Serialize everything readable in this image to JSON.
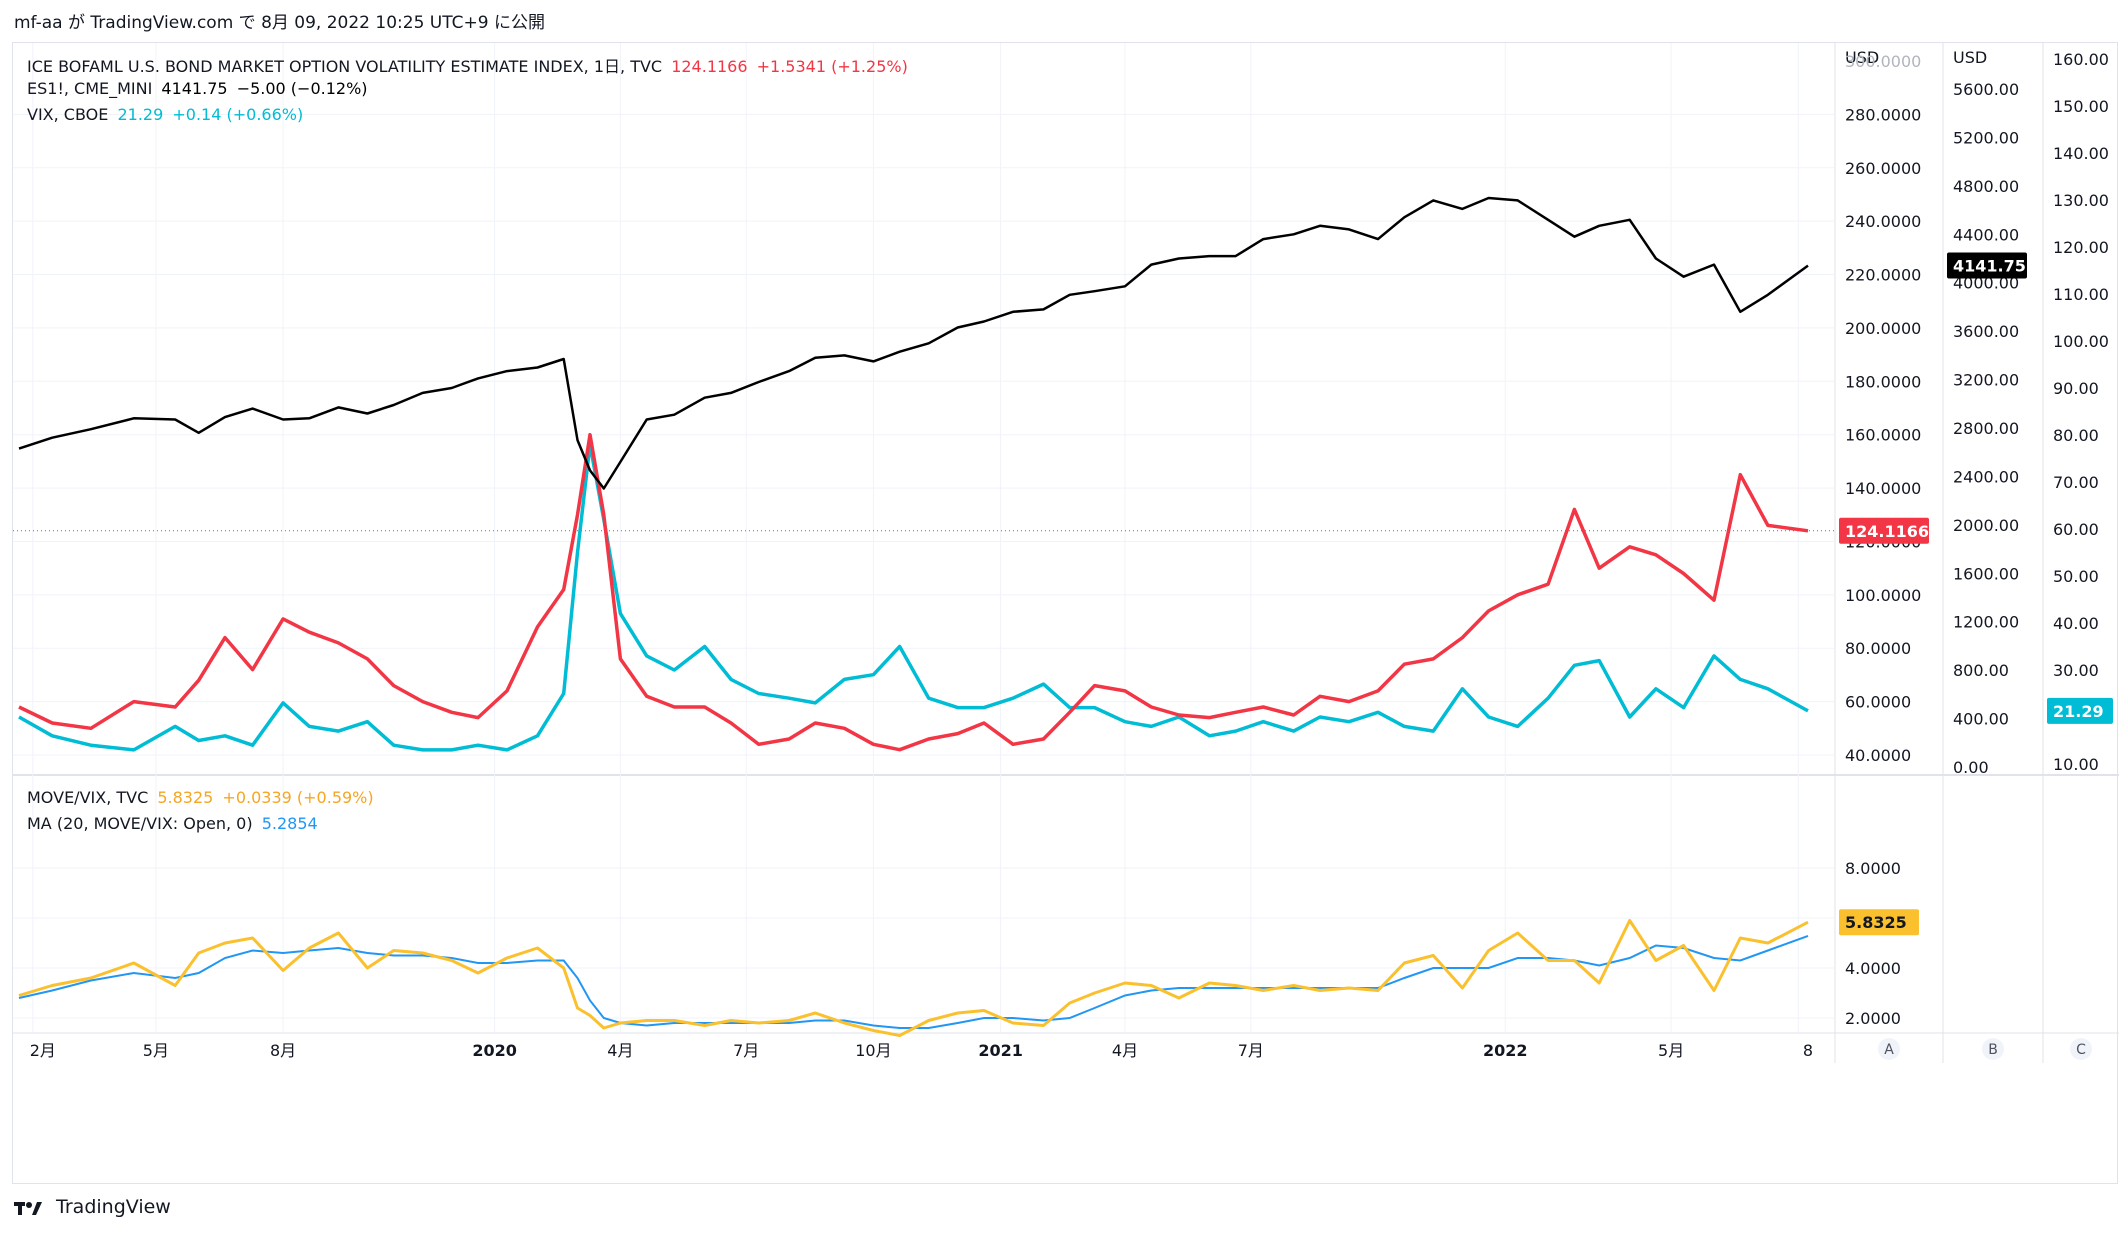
{
  "header": {
    "user": "mf-aa",
    "publish_text": "が TradingView.com で 8月 09, 2022 10:25 UTC+9 に公開"
  },
  "legend": {
    "move": {
      "label": "ICE BOFAML U.S. BOND MARKET OPTION VOLATILITY ESTIMATE INDEX, 1日, TVC",
      "value": "124.1166",
      "change": "+1.5341 (+1.25%)"
    },
    "es": {
      "label": "ES1!, CME_MINI",
      "value": "4141.75",
      "change": "−5.00 (−0.12%)"
    },
    "vix": {
      "label": "VIX, CBOE",
      "value": "21.29",
      "change": "+0.14 (+0.66%)"
    },
    "ratio": {
      "label": "MOVE/VIX, TVC",
      "value": "5.8325",
      "change": "+0.0339 (+0.59%)"
    },
    "ma": {
      "label": "MA (20, MOVE/VIX: Open, 0)",
      "value": "5.2854"
    }
  },
  "axes": {
    "currency_left": "USD",
    "currency_right": "USD",
    "scale_buttons": [
      "A",
      "B",
      "C"
    ],
    "x_labels": [
      "2月",
      "5月",
      "8月",
      "2020",
      "4月",
      "7月",
      "10月",
      "2021",
      "4月",
      "7月",
      "2022",
      "5月",
      "8"
    ]
  },
  "footer": {
    "brand": "TradingView"
  },
  "colors": {
    "move": "#f23645",
    "es": "#000000",
    "vix": "#00bcd4",
    "ratio": "#fbc02d",
    "ma": "#2196f3",
    "grid": "#f0f3fa",
    "axis_text": "#131722"
  },
  "chart_data": [
    {
      "type": "line",
      "title": "ICE BOFAML U.S. BOND MARKET OPTION VOLATILITY ESTIMATE INDEX",
      "x": [
        "2019-01-22",
        "2019-02-15",
        "2019-03-15",
        "2019-04-15",
        "2019-05-15",
        "2019-06-01",
        "2019-06-20",
        "2019-07-10",
        "2019-08-01",
        "2019-08-20",
        "2019-09-10",
        "2019-10-01",
        "2019-10-20",
        "2019-11-10",
        "2019-12-01",
        "2019-12-20",
        "2020-01-10",
        "2020-02-01",
        "2020-02-20",
        "2020-03-01",
        "2020-03-10",
        "2020-03-20",
        "2020-04-01",
        "2020-04-20",
        "2020-05-10",
        "2020-06-01",
        "2020-06-20",
        "2020-07-10",
        "2020-08-01",
        "2020-08-20",
        "2020-09-10",
        "2020-10-01",
        "2020-10-20",
        "2020-11-10",
        "2020-12-01",
        "2020-12-20",
        "2021-01-10",
        "2021-02-01",
        "2021-02-20",
        "2021-03-10",
        "2021-04-01",
        "2021-04-20",
        "2021-05-10",
        "2021-06-01",
        "2021-06-20",
        "2021-07-10",
        "2021-08-01",
        "2021-08-20",
        "2021-09-10",
        "2021-10-01",
        "2021-10-20",
        "2021-11-10",
        "2021-12-01",
        "2021-12-20",
        "2022-01-10",
        "2022-02-01",
        "2022-02-20",
        "2022-03-10",
        "2022-04-01",
        "2022-04-20",
        "2022-05-10",
        "2022-06-01",
        "2022-06-20",
        "2022-07-10",
        "2022-08-08"
      ],
      "series": [
        {
          "name": "MOVE",
          "scale": "left",
          "values": [
            58,
            52,
            50,
            60,
            58,
            68,
            84,
            72,
            91,
            86,
            82,
            76,
            66,
            60,
            56,
            54,
            64,
            88,
            102,
            130,
            160,
            130,
            76,
            62,
            58,
            58,
            52,
            44,
            46,
            52,
            50,
            44,
            42,
            46,
            48,
            52,
            44,
            46,
            56,
            66,
            64,
            58,
            55,
            54,
            56,
            58,
            55,
            62,
            60,
            64,
            74,
            76,
            84,
            94,
            100,
            104,
            132,
            110,
            118,
            115,
            108,
            98,
            145,
            126,
            124
          ]
        },
        {
          "name": "VIX",
          "scale": "right",
          "values": [
            20,
            16,
            14,
            13,
            18,
            15,
            16,
            14,
            23,
            18,
            17,
            19,
            14,
            13,
            13,
            14,
            13,
            16,
            25,
            55,
            78,
            62,
            42,
            33,
            30,
            35,
            28,
            25,
            24,
            23,
            28,
            29,
            35,
            24,
            22,
            22,
            24,
            27,
            22,
            22,
            19,
            18,
            20,
            16,
            17,
            19,
            17,
            20,
            19,
            21,
            18,
            17,
            26,
            20,
            18,
            24,
            31,
            32,
            20,
            26,
            22,
            33,
            28,
            26,
            21.29
          ]
        },
        {
          "name": "ES1!",
          "scale": "middle",
          "values": [
            2630,
            2720,
            2790,
            2880,
            2870,
            2760,
            2890,
            2960,
            2870,
            2880,
            2970,
            2920,
            2990,
            3090,
            3130,
            3210,
            3270,
            3300,
            3370,
            2700,
            2450,
            2300,
            2520,
            2870,
            2910,
            3050,
            3090,
            3180,
            3270,
            3380,
            3400,
            3350,
            3430,
            3500,
            3630,
            3680,
            3760,
            3780,
            3900,
            3930,
            3970,
            4150,
            4200,
            4220,
            4220,
            4360,
            4400,
            4470,
            4440,
            4360,
            4540,
            4680,
            4610,
            4700,
            4680,
            4520,
            4380,
            4470,
            4520,
            4200,
            4050,
            4150,
            3760,
            3900,
            4141.75
          ]
        }
      ],
      "y_scales": {
        "left": {
          "unit": "USD",
          "ticks": [
            40,
            60,
            80,
            100,
            120,
            140,
            160,
            180,
            200,
            220,
            240,
            260,
            280,
            300
          ]
        },
        "middle": {
          "unit": "USD",
          "ticks": [
            0,
            400,
            800,
            1200,
            1600,
            2000,
            2400,
            2800,
            3200,
            3600,
            4000,
            4400,
            4800,
            5200,
            5600
          ]
        },
        "right": {
          "unit": "",
          "ticks": [
            10,
            20,
            30,
            40,
            50,
            60,
            70,
            80,
            90,
            100,
            110,
            120,
            130,
            140,
            150,
            160
          ]
        }
      }
    },
    {
      "type": "line",
      "title": "MOVE/VIX",
      "x": [
        "2019-01-22",
        "2019-02-15",
        "2019-03-15",
        "2019-04-15",
        "2019-05-15",
        "2019-06-01",
        "2019-06-20",
        "2019-07-10",
        "2019-08-01",
        "2019-08-20",
        "2019-09-10",
        "2019-10-01",
        "2019-10-20",
        "2019-11-10",
        "2019-12-01",
        "2019-12-20",
        "2020-01-10",
        "2020-02-01",
        "2020-02-20",
        "2020-03-01",
        "2020-03-10",
        "2020-03-20",
        "2020-04-01",
        "2020-04-20",
        "2020-05-10",
        "2020-06-01",
        "2020-06-20",
        "2020-07-10",
        "2020-08-01",
        "2020-08-20",
        "2020-09-10",
        "2020-10-01",
        "2020-10-20",
        "2020-11-10",
        "2020-12-01",
        "2020-12-20",
        "2021-01-10",
        "2021-02-01",
        "2021-02-20",
        "2021-03-10",
        "2021-04-01",
        "2021-04-20",
        "2021-05-10",
        "2021-06-01",
        "2021-06-20",
        "2021-07-10",
        "2021-08-01",
        "2021-08-20",
        "2021-09-10",
        "2021-10-01",
        "2021-10-20",
        "2021-11-10",
        "2021-12-01",
        "2021-12-20",
        "2022-01-10",
        "2022-02-01",
        "2022-02-20",
        "2022-03-10",
        "2022-04-01",
        "2022-04-20",
        "2022-05-10",
        "2022-06-01",
        "2022-06-20",
        "2022-07-10",
        "2022-08-08"
      ],
      "series": [
        {
          "name": "MOVE/VIX",
          "values": [
            2.9,
            3.3,
            3.6,
            4.2,
            3.3,
            4.6,
            5.0,
            5.2,
            3.9,
            4.8,
            5.4,
            4.0,
            4.7,
            4.6,
            4.3,
            3.8,
            4.4,
            4.8,
            4.0,
            2.4,
            2.1,
            1.6,
            1.8,
            1.9,
            1.9,
            1.7,
            1.9,
            1.8,
            1.9,
            2.2,
            1.8,
            1.5,
            1.3,
            1.9,
            2.2,
            2.3,
            1.8,
            1.7,
            2.6,
            3.0,
            3.4,
            3.3,
            2.8,
            3.4,
            3.3,
            3.1,
            3.3,
            3.1,
            3.2,
            3.1,
            4.2,
            4.5,
            3.2,
            4.7,
            5.4,
            4.3,
            4.3,
            3.4,
            5.9,
            4.3,
            4.9,
            3.1,
            5.2,
            5.0,
            5.8325
          ]
        },
        {
          "name": "MA (20, MOVE/VIX: Open, 0)",
          "values": [
            2.8,
            3.1,
            3.5,
            3.8,
            3.6,
            3.8,
            4.4,
            4.7,
            4.6,
            4.7,
            4.8,
            4.6,
            4.5,
            4.5,
            4.4,
            4.2,
            4.2,
            4.3,
            4.3,
            3.6,
            2.7,
            2.0,
            1.8,
            1.7,
            1.8,
            1.8,
            1.8,
            1.8,
            1.8,
            1.9,
            1.9,
            1.7,
            1.6,
            1.6,
            1.8,
            2.0,
            2.0,
            1.9,
            2.0,
            2.4,
            2.9,
            3.1,
            3.2,
            3.2,
            3.2,
            3.2,
            3.2,
            3.2,
            3.2,
            3.2,
            3.6,
            4.0,
            4.0,
            4.0,
            4.4,
            4.4,
            4.3,
            4.1,
            4.4,
            4.9,
            4.8,
            4.4,
            4.3,
            4.7,
            5.2854
          ]
        }
      ],
      "y_ticks": [
        2,
        4,
        6,
        8
      ]
    }
  ]
}
